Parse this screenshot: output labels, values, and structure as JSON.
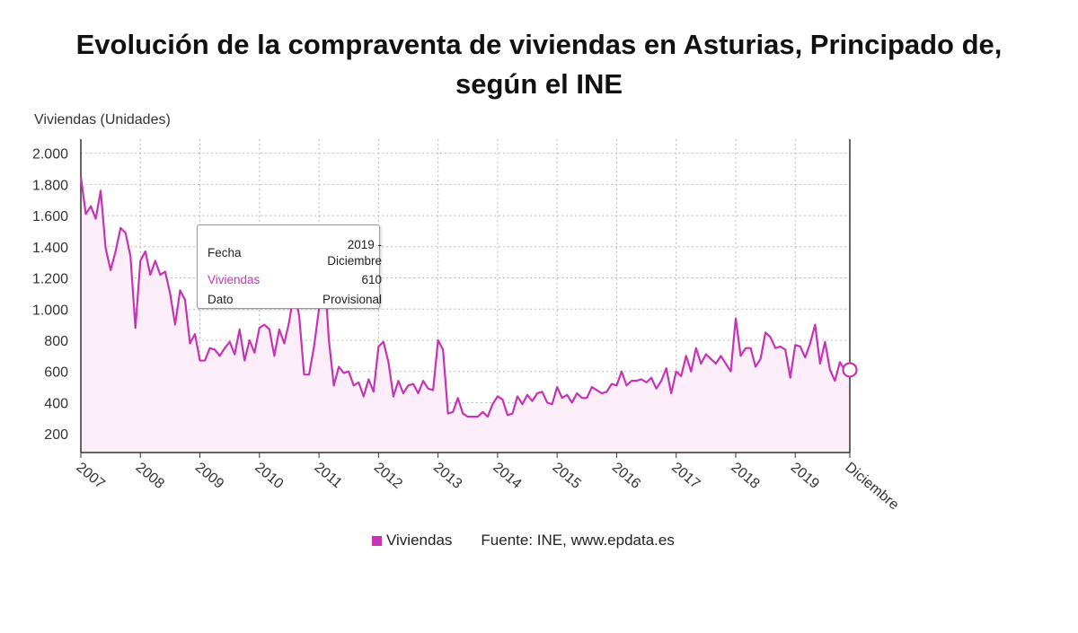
{
  "title": "Evolución de la compraventa de viviendas en Asturias, Principado de, según el INE",
  "colors": {
    "series": "#c633b3",
    "fill": "#fbeef8",
    "grid": "#bbbbbb"
  },
  "tooltip": {
    "fecha_label": "Fecha",
    "fecha_value_1": "2019 -",
    "fecha_value_2": "Diciembre",
    "series_label": "Viviendas",
    "series_value": "610",
    "dato_label": "Dato",
    "dato_value": "Provisional"
  },
  "legend": {
    "series_name": "Viviendas",
    "source": "Fuente: INE, www.epdata.es"
  },
  "chart_data": {
    "type": "area",
    "title": "Evolución de la compraventa de viviendas en Asturias, Principado de, según el INE",
    "ylabel": "Viviendas (Unidades)",
    "ylim": [
      80,
      2090
    ],
    "yticks": [
      200,
      400,
      600,
      800,
      1000,
      1200,
      1400,
      1600,
      1800,
      2000
    ],
    "ytick_labels": [
      "200",
      "400",
      "600",
      "800",
      "1.000",
      "1.200",
      "1.400",
      "1.600",
      "1.800",
      "2.000"
    ],
    "xtick_labels": [
      "2007",
      "2008",
      "2009",
      "2010",
      "2011",
      "2012",
      "2013",
      "2014",
      "2015",
      "2016",
      "2017",
      "2018",
      "2019",
      "Diciembre"
    ],
    "grid": true,
    "legend_position": "bottom",
    "series": [
      {
        "name": "Viviendas",
        "start": "2007-01",
        "frequency": "monthly",
        "values": [
          1850,
          1610,
          1660,
          1580,
          1760,
          1390,
          1250,
          1370,
          1520,
          1490,
          1340,
          880,
          1310,
          1370,
          1220,
          1310,
          1220,
          1240,
          1100,
          900,
          1120,
          1060,
          780,
          840,
          670,
          670,
          750,
          740,
          700,
          750,
          790,
          710,
          870,
          670,
          800,
          720,
          880,
          900,
          870,
          700,
          870,
          780,
          920,
          1120,
          960,
          580,
          580,
          760,
          1000,
          1290,
          800,
          510,
          630,
          590,
          600,
          510,
          530,
          440,
          550,
          470,
          760,
          790,
          660,
          440,
          540,
          460,
          510,
          520,
          460,
          540,
          490,
          480,
          800,
          740,
          330,
          340,
          430,
          330,
          310,
          310,
          310,
          340,
          310,
          390,
          440,
          420,
          320,
          330,
          440,
          390,
          450,
          410,
          460,
          470,
          400,
          390,
          500,
          430,
          450,
          400,
          460,
          430,
          430,
          500,
          480,
          460,
          470,
          520,
          510,
          600,
          510,
          540,
          540,
          550,
          530,
          560,
          490,
          540,
          620,
          460,
          600,
          570,
          700,
          600,
          750,
          650,
          710,
          680,
          650,
          700,
          650,
          600,
          940,
          700,
          750,
          750,
          630,
          680,
          850,
          820,
          750,
          760,
          740,
          560,
          770,
          760,
          690,
          780,
          900,
          650,
          790,
          610,
          540,
          660,
          610,
          610
        ],
        "last_value_label": "610"
      }
    ]
  }
}
